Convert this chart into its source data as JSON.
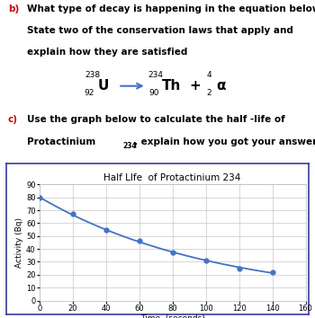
{
  "title": "Half LIfe  of Protactinium 234",
  "xlabel": "Time  (seconds)",
  "ylabel": "Activity (Bq)",
  "x_data": [
    0,
    20,
    40,
    60,
    80,
    100,
    120,
    140
  ],
  "y_data": [
    80,
    67,
    55,
    46,
    37,
    31,
    25,
    22
  ],
  "xlim": [
    0,
    160
  ],
  "ylim": [
    0,
    90
  ],
  "xticks": [
    0,
    20,
    40,
    60,
    80,
    100,
    120,
    140,
    160
  ],
  "yticks": [
    0,
    10,
    20,
    30,
    40,
    50,
    60,
    70,
    80,
    90
  ],
  "line_color": "#4472C4",
  "marker_color": "#4472C4",
  "grid_color": "#C8C8C8",
  "text_color": "#000000",
  "red_color": "#CC0000",
  "border_color": "#3A3A9C",
  "bg_white": "#FFFFFF",
  "bg_outer": "#FFFFFF"
}
